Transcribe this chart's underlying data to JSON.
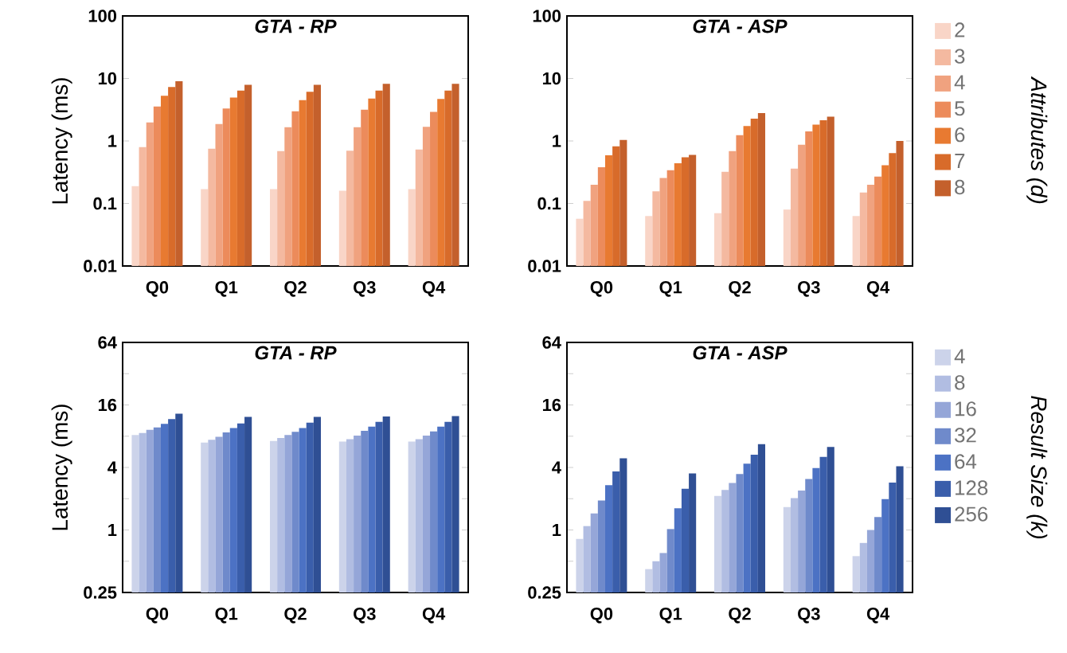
{
  "chart_data": [
    {
      "type": "bar",
      "title": "GTA - RP",
      "ylabel": "Latency (ms)",
      "categories": [
        "Q0",
        "Q1",
        "Q2",
        "Q3",
        "Q4"
      ],
      "log": true,
      "ylim": [
        0.01,
        100
      ],
      "yticks": [
        0.01,
        0.1,
        1,
        10,
        100
      ],
      "series": [
        {
          "color": "#f9d5c7",
          "values": [
            0.19,
            0.17,
            0.17,
            0.16,
            0.17
          ]
        },
        {
          "color": "#f4b9a0",
          "values": [
            0.8,
            0.75,
            0.69,
            0.7,
            0.73
          ]
        },
        {
          "color": "#f0a27f",
          "values": [
            1.98,
            1.87,
            1.66,
            1.66,
            1.69
          ]
        },
        {
          "color": "#ec8b5b",
          "values": [
            3.55,
            3.3,
            2.98,
            3.16,
            2.92
          ]
        },
        {
          "color": "#e87a31",
          "values": [
            5.3,
            4.95,
            4.5,
            4.76,
            4.7
          ]
        },
        {
          "color": "#d86b2a",
          "values": [
            7.3,
            6.4,
            6.1,
            6.4,
            6.4
          ]
        },
        {
          "color": "#c4602c",
          "values": [
            9.0,
            7.9,
            7.9,
            8.2,
            8.2
          ]
        }
      ]
    },
    {
      "type": "bar",
      "title": "GTA - ASP",
      "legend_title": "Attributes (d)",
      "legend": "right",
      "categories": [
        "Q0",
        "Q1",
        "Q2",
        "Q3",
        "Q4"
      ],
      "log": true,
      "ylim": [
        0.01,
        100
      ],
      "yticks": [
        0.01,
        0.1,
        1,
        10,
        100
      ],
      "series": [
        {
          "name": "2",
          "color": "#f9d5c7",
          "values": [
            0.057,
            0.063,
            0.07,
            0.08,
            0.063
          ]
        },
        {
          "name": "3",
          "color": "#f4b9a0",
          "values": [
            0.11,
            0.157,
            0.32,
            0.36,
            0.15
          ]
        },
        {
          "name": "4",
          "color": "#f0a27f",
          "values": [
            0.2,
            0.255,
            0.69,
            0.87,
            0.2
          ]
        },
        {
          "name": "5",
          "color": "#ec8b5b",
          "values": [
            0.38,
            0.34,
            1.24,
            1.42,
            0.27
          ]
        },
        {
          "name": "6",
          "color": "#e87a31",
          "values": [
            0.59,
            0.44,
            1.73,
            1.83,
            0.41
          ]
        },
        {
          "name": "7",
          "color": "#d86b2a",
          "values": [
            0.82,
            0.55,
            2.27,
            2.14,
            0.64
          ]
        },
        {
          "name": "8",
          "color": "#c4602c",
          "values": [
            1.04,
            0.6,
            2.8,
            2.45,
            1.0
          ]
        }
      ]
    },
    {
      "type": "bar",
      "title": "GTA - RP",
      "ylabel": "Latency (ms)",
      "categories": [
        "Q0",
        "Q1",
        "Q2",
        "Q3",
        "Q4"
      ],
      "log": true,
      "ylim": [
        0.25,
        64
      ],
      "yticks": [
        0.25,
        {
          "value": 0.5,
          "label": null
        },
        1,
        {
          "value": 2,
          "label": null
        },
        4,
        {
          "value": 8,
          "label": null
        },
        16,
        {
          "value": 32,
          "label": null
        },
        64
      ],
      "series": [
        {
          "color": "#ccd3ea",
          "values": [
            8.2,
            6.95,
            7.2,
            7.1,
            7.1
          ]
        },
        {
          "color": "#b1bde2",
          "values": [
            8.6,
            7.4,
            7.7,
            7.5,
            7.5
          ]
        },
        {
          "color": "#95a6d8",
          "values": [
            9.2,
            7.9,
            8.2,
            8.1,
            8.1
          ]
        },
        {
          "color": "#6f8acb",
          "values": [
            9.7,
            8.7,
            8.8,
            9.0,
            8.9
          ]
        },
        {
          "color": "#4c72c4",
          "values": [
            10.5,
            9.6,
            9.6,
            9.9,
            9.9
          ]
        },
        {
          "color": "#3a5eab",
          "values": [
            11.7,
            10.6,
            10.8,
            11.0,
            11.0
          ]
        },
        {
          "color": "#2f4f94",
          "values": [
            13.2,
            12.3,
            12.3,
            12.4,
            12.5
          ]
        }
      ]
    },
    {
      "type": "bar",
      "title": "GTA - ASP",
      "legend_title": "Result Size (k)",
      "legend": "right",
      "categories": [
        "Q0",
        "Q1",
        "Q2",
        "Q3",
        "Q4"
      ],
      "log": true,
      "ylim": [
        0.25,
        64
      ],
      "yticks": [
        0.25,
        {
          "value": 0.5,
          "label": null
        },
        1,
        {
          "value": 2,
          "label": null
        },
        4,
        {
          "value": 8,
          "label": null
        },
        16,
        {
          "value": 32,
          "label": null
        },
        64
      ],
      "series": [
        {
          "name": "4",
          "color": "#ccd3ea",
          "values": [
            0.82,
            0.42,
            2.13,
            1.66,
            0.56
          ]
        },
        {
          "name": "8",
          "color": "#b1bde2",
          "values": [
            1.09,
            0.5,
            2.43,
            2.03,
            0.75
          ]
        },
        {
          "name": "16",
          "color": "#95a6d8",
          "values": [
            1.44,
            0.6,
            2.83,
            2.4,
            1.0
          ]
        },
        {
          "name": "32",
          "color": "#6f8acb",
          "values": [
            1.92,
            1.02,
            3.46,
            3.1,
            1.33
          ]
        },
        {
          "name": "64",
          "color": "#4c72c4",
          "values": [
            2.7,
            1.62,
            4.35,
            3.95,
            1.98
          ]
        },
        {
          "name": "128",
          "color": "#3a5eab",
          "values": [
            3.67,
            2.5,
            5.3,
            5.05,
            2.86
          ]
        },
        {
          "name": "256",
          "color": "#2f4f94",
          "values": [
            4.9,
            3.5,
            6.7,
            6.3,
            4.1
          ]
        }
      ]
    }
  ]
}
